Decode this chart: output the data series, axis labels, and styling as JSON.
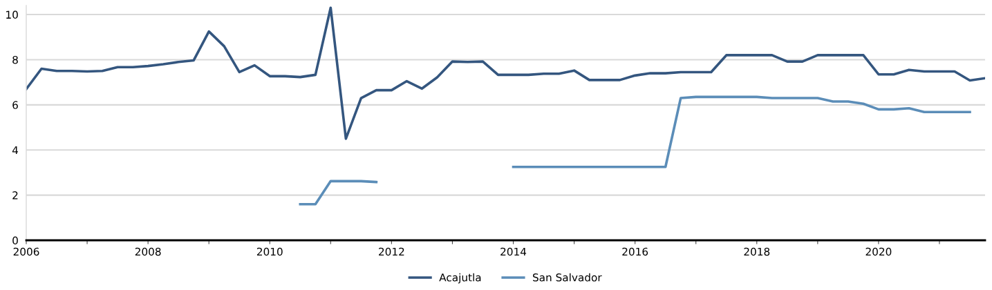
{
  "chart_data": {
    "type": "line",
    "x": [
      2006,
      2006.25,
      2006.5,
      2006.75,
      2007,
      2007.25,
      2007.5,
      2007.75,
      2008,
      2008.25,
      2008.5,
      2008.75,
      2009,
      2009.25,
      2009.5,
      2009.75,
      2010,
      2010.25,
      2010.5,
      2010.75,
      2011,
      2011.25,
      2011.5,
      2011.75,
      2012,
      2012.25,
      2012.5,
      2012.75,
      2013,
      2013.25,
      2013.5,
      2013.75,
      2014,
      2014.25,
      2014.5,
      2014.75,
      2015,
      2015.25,
      2015.5,
      2015.75,
      2016,
      2016.25,
      2016.5,
      2016.75,
      2017,
      2017.25,
      2017.5,
      2017.75,
      2018,
      2018.25,
      2018.5,
      2018.75,
      2019,
      2019.25,
      2019.5,
      2019.75,
      2020,
      2020.25,
      2020.5,
      2020.75,
      2021,
      2021.25,
      2021.5,
      2021.75
    ],
    "series": [
      {
        "name": "Acajutla",
        "color": "#34567f",
        "values": [
          6.7,
          7.6,
          7.5,
          7.5,
          7.48,
          7.5,
          7.67,
          7.67,
          7.72,
          7.8,
          7.9,
          7.97,
          9.25,
          8.6,
          7.45,
          7.75,
          7.27,
          7.27,
          7.23,
          7.33,
          10.3,
          4.5,
          6.3,
          6.65,
          6.65,
          7.05,
          6.72,
          7.22,
          7.92,
          7.9,
          7.92,
          7.33,
          7.33,
          7.33,
          7.38,
          7.38,
          7.52,
          7.1,
          7.1,
          7.1,
          7.3,
          7.4,
          7.4,
          7.45,
          7.45,
          7.45,
          8.2,
          8.2,
          8.2,
          8.2,
          7.92,
          7.92,
          8.2,
          8.2,
          8.2,
          8.2,
          7.35,
          7.35,
          7.55,
          7.48,
          7.48,
          7.48,
          7.08,
          7.18
        ]
      },
      {
        "name": "San Salvador",
        "color": "#5b8db8",
        "values": [
          null,
          null,
          null,
          null,
          null,
          null,
          null,
          null,
          null,
          null,
          null,
          null,
          null,
          null,
          null,
          null,
          null,
          null,
          1.6,
          1.6,
          2.62,
          2.62,
          2.62,
          2.58,
          null,
          null,
          null,
          null,
          null,
          null,
          null,
          null,
          3.25,
          3.25,
          3.25,
          3.25,
          3.25,
          3.25,
          3.25,
          3.25,
          3.25,
          3.25,
          3.25,
          6.3,
          6.35,
          6.35,
          6.35,
          6.35,
          6.35,
          6.3,
          6.3,
          6.3,
          6.3,
          6.15,
          6.15,
          6.05,
          5.8,
          5.8,
          5.85,
          5.68,
          5.68,
          5.68,
          5.68,
          null
        ]
      }
    ],
    "xlim": [
      2006,
      2021.75
    ],
    "xticks": [
      2006,
      {
        "value": 2007,
        "label": null
      },
      2008,
      {
        "value": 2009,
        "label": null
      },
      2010,
      {
        "value": 2011,
        "label": null
      },
      2012,
      {
        "value": 2013,
        "label": null
      },
      2014,
      {
        "value": 2015,
        "label": null
      },
      2016,
      {
        "value": 2017,
        "label": null
      },
      2018,
      {
        "value": 2019,
        "label": null
      },
      2020,
      {
        "value": 2021,
        "label": null
      }
    ],
    "ylim": [
      0,
      10.4
    ],
    "yticks": [
      0,
      2,
      4,
      6,
      8,
      10
    ],
    "grid": "y",
    "legend": "bottom",
    "marker": "none",
    "line_style": "solid"
  }
}
